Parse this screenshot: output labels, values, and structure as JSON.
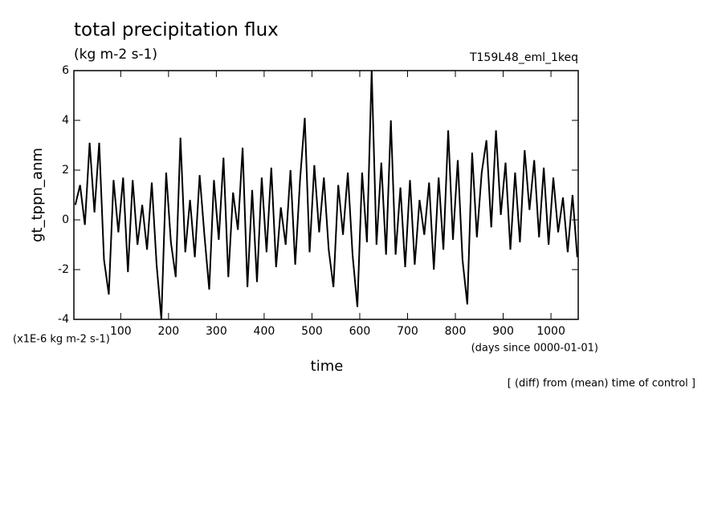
{
  "chart_data": {
    "type": "line",
    "title": "total precipitation flux",
    "subtitle": "(kg m-2 s-1)",
    "run_label": "T159L48_eml_1keq",
    "y_label": "gt_tppn_anm",
    "y_unit": "(x1E-6 kg m-2 s-1)",
    "x_label": "time",
    "x_unit": "(days since 0000-01-01)",
    "note": "[ (diff) from (mean) time of control ]",
    "color": "#000000",
    "xlim": [
      2,
      1057
    ],
    "xticks": [
      100,
      200,
      300,
      400,
      500,
      600,
      700,
      800,
      900,
      1000
    ],
    "ylim": [
      -4,
      6
    ],
    "yticks": [
      -4,
      -2,
      0,
      2,
      4,
      6
    ],
    "x": [
      5,
      15,
      25,
      35,
      45,
      55,
      65,
      75,
      85,
      95,
      105,
      115,
      125,
      135,
      145,
      155,
      165,
      175,
      185,
      195,
      205,
      215,
      225,
      235,
      245,
      255,
      265,
      275,
      285,
      295,
      305,
      315,
      325,
      335,
      345,
      355,
      365,
      375,
      385,
      395,
      405,
      415,
      425,
      435,
      445,
      455,
      465,
      475,
      485,
      495,
      505,
      515,
      525,
      535,
      545,
      555,
      565,
      575,
      585,
      595,
      605,
      615,
      625,
      635,
      645,
      655,
      665,
      675,
      685,
      695,
      705,
      715,
      725,
      735,
      745,
      755,
      765,
      775,
      785,
      795,
      805,
      815,
      825,
      835,
      845,
      855,
      865,
      875,
      885,
      895,
      905,
      915,
      925,
      935,
      945,
      955,
      965,
      975,
      985,
      995,
      1005,
      1015,
      1025,
      1035,
      1045,
      1055
    ],
    "values": [
      0.6,
      1.4,
      -0.2,
      3.1,
      0.3,
      3.1,
      -1.6,
      -3.0,
      1.6,
      -0.5,
      1.7,
      -2.1,
      1.6,
      -1.0,
      0.6,
      -1.2,
      1.5,
      -1.8,
      -4.0,
      1.9,
      -0.9,
      -2.3,
      3.3,
      -1.3,
      0.8,
      -1.5,
      1.8,
      -0.6,
      -2.8,
      1.6,
      -0.8,
      2.5,
      -2.3,
      1.1,
      -0.4,
      2.9,
      -2.7,
      1.2,
      -2.5,
      1.7,
      -1.3,
      2.1,
      -1.9,
      0.5,
      -1.0,
      2.0,
      -1.8,
      1.6,
      4.1,
      -1.3,
      2.2,
      -0.5,
      1.7,
      -1.2,
      -2.7,
      1.4,
      -0.6,
      1.9,
      -1.4,
      -3.5,
      1.9,
      -0.9,
      6.0,
      -1.0,
      2.3,
      -1.4,
      4.0,
      -1.4,
      1.3,
      -1.9,
      1.6,
      -1.8,
      0.8,
      -0.6,
      1.5,
      -2.0,
      1.7,
      -1.2,
      3.6,
      -0.8,
      2.4,
      -1.6,
      -3.4,
      2.7,
      -0.7,
      1.9,
      3.2,
      -0.3,
      3.6,
      0.2,
      2.3,
      -1.2,
      1.9,
      -0.9,
      2.8,
      0.4,
      2.4,
      -0.7,
      2.1,
      -1.0,
      1.7,
      -0.5,
      0.9,
      -1.3,
      1.0,
      -1.5
    ]
  }
}
